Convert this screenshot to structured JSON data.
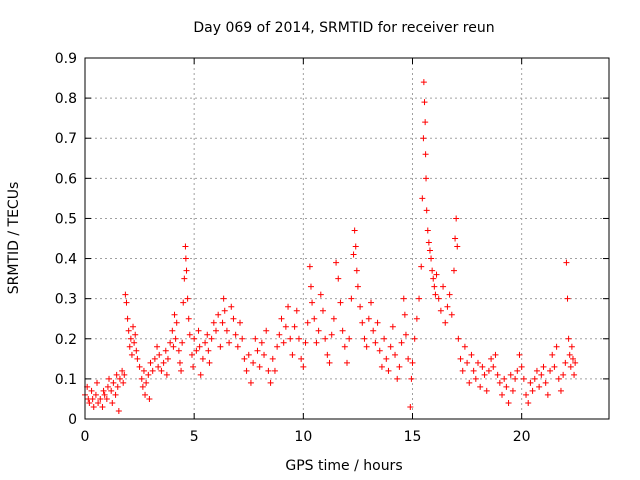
{
  "chart_data": {
    "type": "scatter",
    "title": "Day 069 of 2014, SRMTID for receiver reun",
    "xlabel": "GPS time / hours",
    "ylabel": "SRMTID / TECUs",
    "xlim": [
      0,
      24
    ],
    "ylim": [
      0,
      0.9
    ],
    "xticks": [
      0,
      5,
      10,
      15,
      20
    ],
    "xtick_labels": [
      "0",
      "5",
      "10",
      "15",
      "20"
    ],
    "yticks": [
      0,
      0.1,
      0.2,
      0.3,
      0.4,
      0.5,
      0.6,
      0.7,
      0.8,
      0.9
    ],
    "ytick_labels": [
      "0",
      "0.1",
      "0.2",
      "0.3",
      "0.4",
      "0.5",
      "0.6",
      "0.7",
      "0.8",
      "0.9"
    ],
    "grid": true,
    "marker": "+",
    "color": "#ff0000",
    "series": [
      {
        "name": "SRMTID",
        "points": [
          [
            0.0,
            0.06
          ],
          [
            0.1,
            0.08
          ],
          [
            0.15,
            0.05
          ],
          [
            0.2,
            0.04
          ],
          [
            0.3,
            0.07
          ],
          [
            0.35,
            0.05
          ],
          [
            0.4,
            0.03
          ],
          [
            0.5,
            0.06
          ],
          [
            0.55,
            0.09
          ],
          [
            0.6,
            0.04
          ],
          [
            0.7,
            0.05
          ],
          [
            0.8,
            0.03
          ],
          [
            0.85,
            0.07
          ],
          [
            0.9,
            0.06
          ],
          [
            1.0,
            0.05
          ],
          [
            1.05,
            0.08
          ],
          [
            1.1,
            0.1
          ],
          [
            1.2,
            0.07
          ],
          [
            1.25,
            0.04
          ],
          [
            1.3,
            0.09
          ],
          [
            1.4,
            0.06
          ],
          [
            1.45,
            0.11
          ],
          [
            1.5,
            0.08
          ],
          [
            1.55,
            0.02
          ],
          [
            1.6,
            0.1
          ],
          [
            1.7,
            0.12
          ],
          [
            1.75,
            0.09
          ],
          [
            1.8,
            0.11
          ],
          [
            1.85,
            0.31
          ],
          [
            1.9,
            0.29
          ],
          [
            1.95,
            0.25
          ],
          [
            2.0,
            0.22
          ],
          [
            2.05,
            0.18
          ],
          [
            2.1,
            0.2
          ],
          [
            2.15,
            0.16
          ],
          [
            2.2,
            0.23
          ],
          [
            2.25,
            0.19
          ],
          [
            2.3,
            0.21
          ],
          [
            2.35,
            0.17
          ],
          [
            2.4,
            0.15
          ],
          [
            2.5,
            0.13
          ],
          [
            2.6,
            0.1
          ],
          [
            2.65,
            0.08
          ],
          [
            2.7,
            0.12
          ],
          [
            2.75,
            0.06
          ],
          [
            2.8,
            0.09
          ],
          [
            2.9,
            0.11
          ],
          [
            2.95,
            0.05
          ],
          [
            3.0,
            0.14
          ],
          [
            3.1,
            0.12
          ],
          [
            3.2,
            0.15
          ],
          [
            3.3,
            0.18
          ],
          [
            3.35,
            0.13
          ],
          [
            3.4,
            0.16
          ],
          [
            3.5,
            0.12
          ],
          [
            3.6,
            0.14
          ],
          [
            3.7,
            0.17
          ],
          [
            3.75,
            0.11
          ],
          [
            3.8,
            0.15
          ],
          [
            3.9,
            0.19
          ],
          [
            4.0,
            0.22
          ],
          [
            4.05,
            0.18
          ],
          [
            4.1,
            0.26
          ],
          [
            4.15,
            0.2
          ],
          [
            4.2,
            0.24
          ],
          [
            4.3,
            0.17
          ],
          [
            4.35,
            0.14
          ],
          [
            4.4,
            0.12
          ],
          [
            4.45,
            0.19
          ],
          [
            4.5,
            0.29
          ],
          [
            4.55,
            0.35
          ],
          [
            4.6,
            0.43
          ],
          [
            4.62,
            0.4
          ],
          [
            4.65,
            0.37
          ],
          [
            4.7,
            0.3
          ],
          [
            4.75,
            0.25
          ],
          [
            4.8,
            0.21
          ],
          [
            4.9,
            0.16
          ],
          [
            4.95,
            0.13
          ],
          [
            5.0,
            0.2
          ],
          [
            5.1,
            0.17
          ],
          [
            5.2,
            0.22
          ],
          [
            5.25,
            0.18
          ],
          [
            5.3,
            0.11
          ],
          [
            5.4,
            0.15
          ],
          [
            5.5,
            0.19
          ],
          [
            5.6,
            0.21
          ],
          [
            5.65,
            0.17
          ],
          [
            5.7,
            0.14
          ],
          [
            5.8,
            0.2
          ],
          [
            5.9,
            0.24
          ],
          [
            6.0,
            0.22
          ],
          [
            6.1,
            0.26
          ],
          [
            6.2,
            0.18
          ],
          [
            6.3,
            0.24
          ],
          [
            6.35,
            0.3
          ],
          [
            6.4,
            0.27
          ],
          [
            6.5,
            0.22
          ],
          [
            6.6,
            0.19
          ],
          [
            6.7,
            0.28
          ],
          [
            6.8,
            0.25
          ],
          [
            6.9,
            0.21
          ],
          [
            7.0,
            0.18
          ],
          [
            7.1,
            0.24
          ],
          [
            7.2,
            0.2
          ],
          [
            7.3,
            0.15
          ],
          [
            7.4,
            0.12
          ],
          [
            7.5,
            0.16
          ],
          [
            7.6,
            0.09
          ],
          [
            7.7,
            0.14
          ],
          [
            7.8,
            0.2
          ],
          [
            7.9,
            0.17
          ],
          [
            8.0,
            0.13
          ],
          [
            8.1,
            0.19
          ],
          [
            8.2,
            0.16
          ],
          [
            8.3,
            0.22
          ],
          [
            8.4,
            0.12
          ],
          [
            8.5,
            0.09
          ],
          [
            8.6,
            0.15
          ],
          [
            8.7,
            0.12
          ],
          [
            8.8,
            0.18
          ],
          [
            8.9,
            0.21
          ],
          [
            9.0,
            0.25
          ],
          [
            9.1,
            0.19
          ],
          [
            9.2,
            0.23
          ],
          [
            9.3,
            0.28
          ],
          [
            9.4,
            0.2
          ],
          [
            9.5,
            0.16
          ],
          [
            9.6,
            0.23
          ],
          [
            9.7,
            0.27
          ],
          [
            9.8,
            0.2
          ],
          [
            9.9,
            0.15
          ],
          [
            10.0,
            0.13
          ],
          [
            10.1,
            0.19
          ],
          [
            10.2,
            0.24
          ],
          [
            10.3,
            0.38
          ],
          [
            10.35,
            0.33
          ],
          [
            10.4,
            0.29
          ],
          [
            10.5,
            0.25
          ],
          [
            10.6,
            0.19
          ],
          [
            10.7,
            0.22
          ],
          [
            10.8,
            0.31
          ],
          [
            10.9,
            0.27
          ],
          [
            11.0,
            0.2
          ],
          [
            11.1,
            0.16
          ],
          [
            11.2,
            0.14
          ],
          [
            11.3,
            0.21
          ],
          [
            11.4,
            0.25
          ],
          [
            11.5,
            0.39
          ],
          [
            11.6,
            0.35
          ],
          [
            11.7,
            0.29
          ],
          [
            11.8,
            0.22
          ],
          [
            11.9,
            0.18
          ],
          [
            12.0,
            0.14
          ],
          [
            12.1,
            0.2
          ],
          [
            12.2,
            0.3
          ],
          [
            12.3,
            0.41
          ],
          [
            12.35,
            0.47
          ],
          [
            12.4,
            0.43
          ],
          [
            12.45,
            0.37
          ],
          [
            12.5,
            0.33
          ],
          [
            12.6,
            0.28
          ],
          [
            12.7,
            0.24
          ],
          [
            12.8,
            0.2
          ],
          [
            12.9,
            0.18
          ],
          [
            13.0,
            0.25
          ],
          [
            13.1,
            0.29
          ],
          [
            13.2,
            0.22
          ],
          [
            13.3,
            0.19
          ],
          [
            13.4,
            0.24
          ],
          [
            13.5,
            0.17
          ],
          [
            13.6,
            0.13
          ],
          [
            13.7,
            0.2
          ],
          [
            13.8,
            0.15
          ],
          [
            13.9,
            0.12
          ],
          [
            14.0,
            0.18
          ],
          [
            14.1,
            0.23
          ],
          [
            14.2,
            0.16
          ],
          [
            14.3,
            0.1
          ],
          [
            14.4,
            0.13
          ],
          [
            14.5,
            0.19
          ],
          [
            14.6,
            0.3
          ],
          [
            14.65,
            0.26
          ],
          [
            14.7,
            0.21
          ],
          [
            14.8,
            0.15
          ],
          [
            14.9,
            0.03
          ],
          [
            14.95,
            0.1
          ],
          [
            15.0,
            0.14
          ],
          [
            15.1,
            0.2
          ],
          [
            15.2,
            0.25
          ],
          [
            15.3,
            0.3
          ],
          [
            15.4,
            0.38
          ],
          [
            15.45,
            0.55
          ],
          [
            15.5,
            0.7
          ],
          [
            15.52,
            0.84
          ],
          [
            15.55,
            0.79
          ],
          [
            15.58,
            0.74
          ],
          [
            15.6,
            0.66
          ],
          [
            15.62,
            0.6
          ],
          [
            15.65,
            0.52
          ],
          [
            15.7,
            0.47
          ],
          [
            15.75,
            0.44
          ],
          [
            15.8,
            0.42
          ],
          [
            15.85,
            0.4
          ],
          [
            15.9,
            0.37
          ],
          [
            15.95,
            0.35
          ],
          [
            16.0,
            0.33
          ],
          [
            16.05,
            0.31
          ],
          [
            16.1,
            0.36
          ],
          [
            16.2,
            0.3
          ],
          [
            16.3,
            0.27
          ],
          [
            16.4,
            0.33
          ],
          [
            16.5,
            0.24
          ],
          [
            16.6,
            0.28
          ],
          [
            16.7,
            0.31
          ],
          [
            16.8,
            0.26
          ],
          [
            16.9,
            0.37
          ],
          [
            16.95,
            0.45
          ],
          [
            17.0,
            0.5
          ],
          [
            17.05,
            0.43
          ],
          [
            17.1,
            0.2
          ],
          [
            17.2,
            0.15
          ],
          [
            17.3,
            0.12
          ],
          [
            17.4,
            0.18
          ],
          [
            17.5,
            0.14
          ],
          [
            17.6,
            0.09
          ],
          [
            17.7,
            0.16
          ],
          [
            17.8,
            0.12
          ],
          [
            17.9,
            0.1
          ],
          [
            18.0,
            0.14
          ],
          [
            18.1,
            0.08
          ],
          [
            18.2,
            0.13
          ],
          [
            18.3,
            0.11
          ],
          [
            18.4,
            0.07
          ],
          [
            18.5,
            0.12
          ],
          [
            18.6,
            0.15
          ],
          [
            18.7,
            0.13
          ],
          [
            18.8,
            0.16
          ],
          [
            18.9,
            0.11
          ],
          [
            19.0,
            0.09
          ],
          [
            19.1,
            0.06
          ],
          [
            19.2,
            0.1
          ],
          [
            19.3,
            0.08
          ],
          [
            19.4,
            0.04
          ],
          [
            19.5,
            0.11
          ],
          [
            19.6,
            0.07
          ],
          [
            19.7,
            0.1
          ],
          [
            19.8,
            0.12
          ],
          [
            19.9,
            0.16
          ],
          [
            20.0,
            0.13
          ],
          [
            20.1,
            0.1
          ],
          [
            20.2,
            0.06
          ],
          [
            20.3,
            0.04
          ],
          [
            20.4,
            0.09
          ],
          [
            20.5,
            0.07
          ],
          [
            20.6,
            0.1
          ],
          [
            20.7,
            0.12
          ],
          [
            20.8,
            0.08
          ],
          [
            20.9,
            0.11
          ],
          [
            21.0,
            0.13
          ],
          [
            21.1,
            0.09
          ],
          [
            21.2,
            0.06
          ],
          [
            21.3,
            0.12
          ],
          [
            21.4,
            0.16
          ],
          [
            21.5,
            0.13
          ],
          [
            21.6,
            0.18
          ],
          [
            21.7,
            0.1
          ],
          [
            21.8,
            0.07
          ],
          [
            21.9,
            0.11
          ],
          [
            22.0,
            0.14
          ],
          [
            22.05,
            0.39
          ],
          [
            22.1,
            0.3
          ],
          [
            22.15,
            0.2
          ],
          [
            22.2,
            0.16
          ],
          [
            22.25,
            0.13
          ],
          [
            22.3,
            0.18
          ],
          [
            22.35,
            0.15
          ],
          [
            22.4,
            0.11
          ],
          [
            22.45,
            0.14
          ]
        ]
      }
    ]
  }
}
